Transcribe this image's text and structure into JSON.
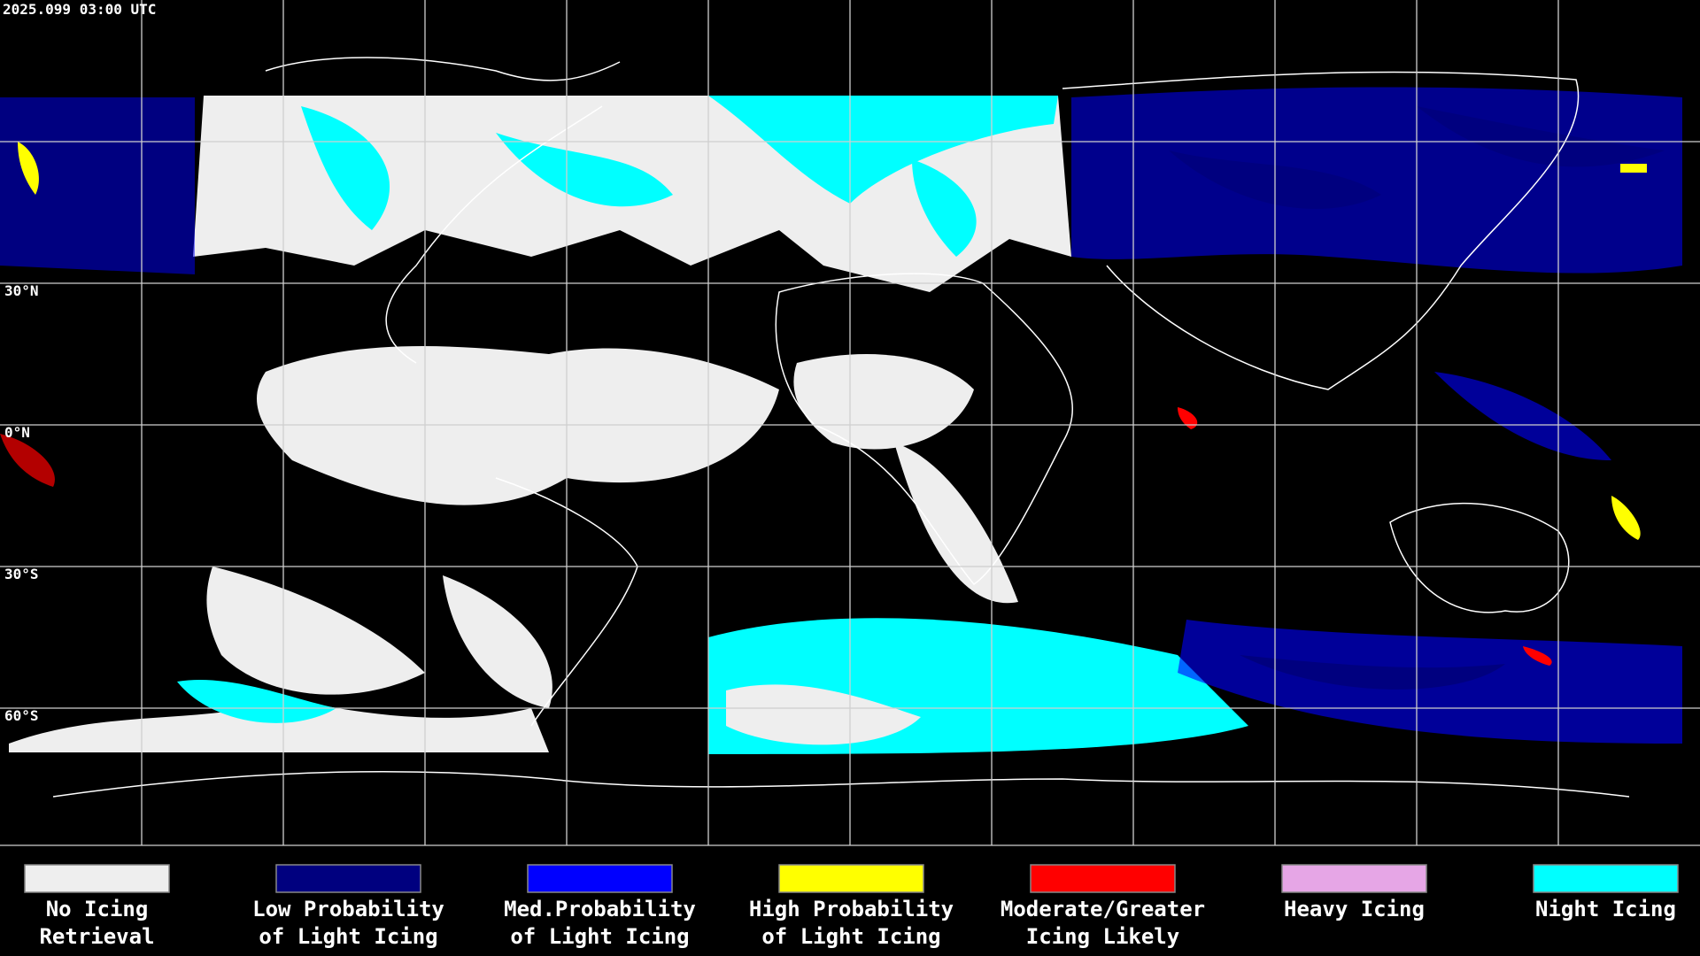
{
  "header": {
    "timestamp": "2025.099 03:00 UTC"
  },
  "map": {
    "lat_labels": [
      "30°N",
      "0°N",
      "30°S",
      "60°S"
    ]
  },
  "legend": [
    {
      "lines": [
        "No Icing",
        "Retrieval"
      ],
      "color": "#eeeeee"
    },
    {
      "lines": [
        "Low Probability",
        "of Light Icing"
      ],
      "color": "#00007f"
    },
    {
      "lines": [
        "Med.Probability",
        "of Light Icing"
      ],
      "color": "#0000ff"
    },
    {
      "lines": [
        "High Probability",
        "of Light Icing"
      ],
      "color": "#ffff00"
    },
    {
      "lines": [
        "Moderate/Greater",
        "Icing Likely"
      ],
      "color": "#ff0000"
    },
    {
      "lines": [
        "Heavy Icing"
      ],
      "color": "#e6a6e6"
    },
    {
      "lines": [
        "Night Icing"
      ],
      "color": "#00ffff"
    }
  ]
}
